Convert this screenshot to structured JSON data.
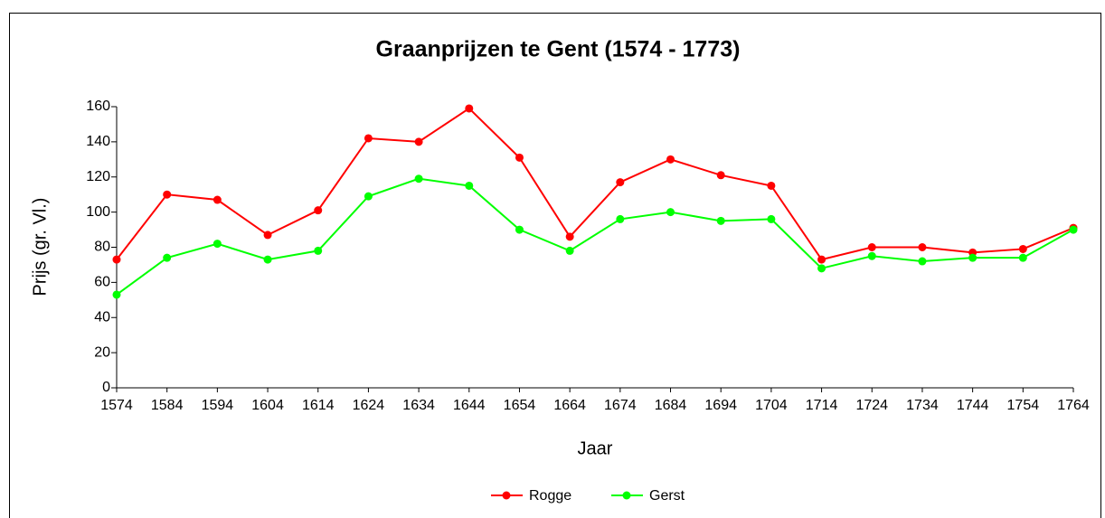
{
  "chart_data": {
    "type": "line",
    "title": "Graanprijzen te Gent (1574 - 1773)",
    "x_label": "Jaar",
    "y_label": "Prijs (gr. Vl.)",
    "categories": [
      "1574",
      "1584",
      "1594",
      "1604",
      "1614",
      "1624",
      "1634",
      "1644",
      "1654",
      "1664",
      "1674",
      "1684",
      "1694",
      "1704",
      "1714",
      "1724",
      "1734",
      "1744",
      "1754",
      "1764"
    ],
    "series": [
      {
        "name": "Rogge",
        "color": "#ff0000",
        "values": [
          73,
          110,
          107,
          87,
          101,
          142,
          140,
          159,
          131,
          86,
          117,
          130,
          121,
          115,
          73,
          80,
          80,
          77,
          79,
          91
        ]
      },
      {
        "name": "Gerst",
        "color": "#00ff00",
        "values": [
          53,
          74,
          82,
          73,
          78,
          109,
          119,
          115,
          90,
          78,
          96,
          100,
          95,
          96,
          68,
          75,
          72,
          74,
          74,
          90
        ]
      }
    ],
    "ylim": [
      0,
      160
    ],
    "yticks": [
      0,
      20,
      40,
      60,
      80,
      100,
      120,
      140,
      160
    ],
    "grid": false,
    "legend": "bottom"
  }
}
